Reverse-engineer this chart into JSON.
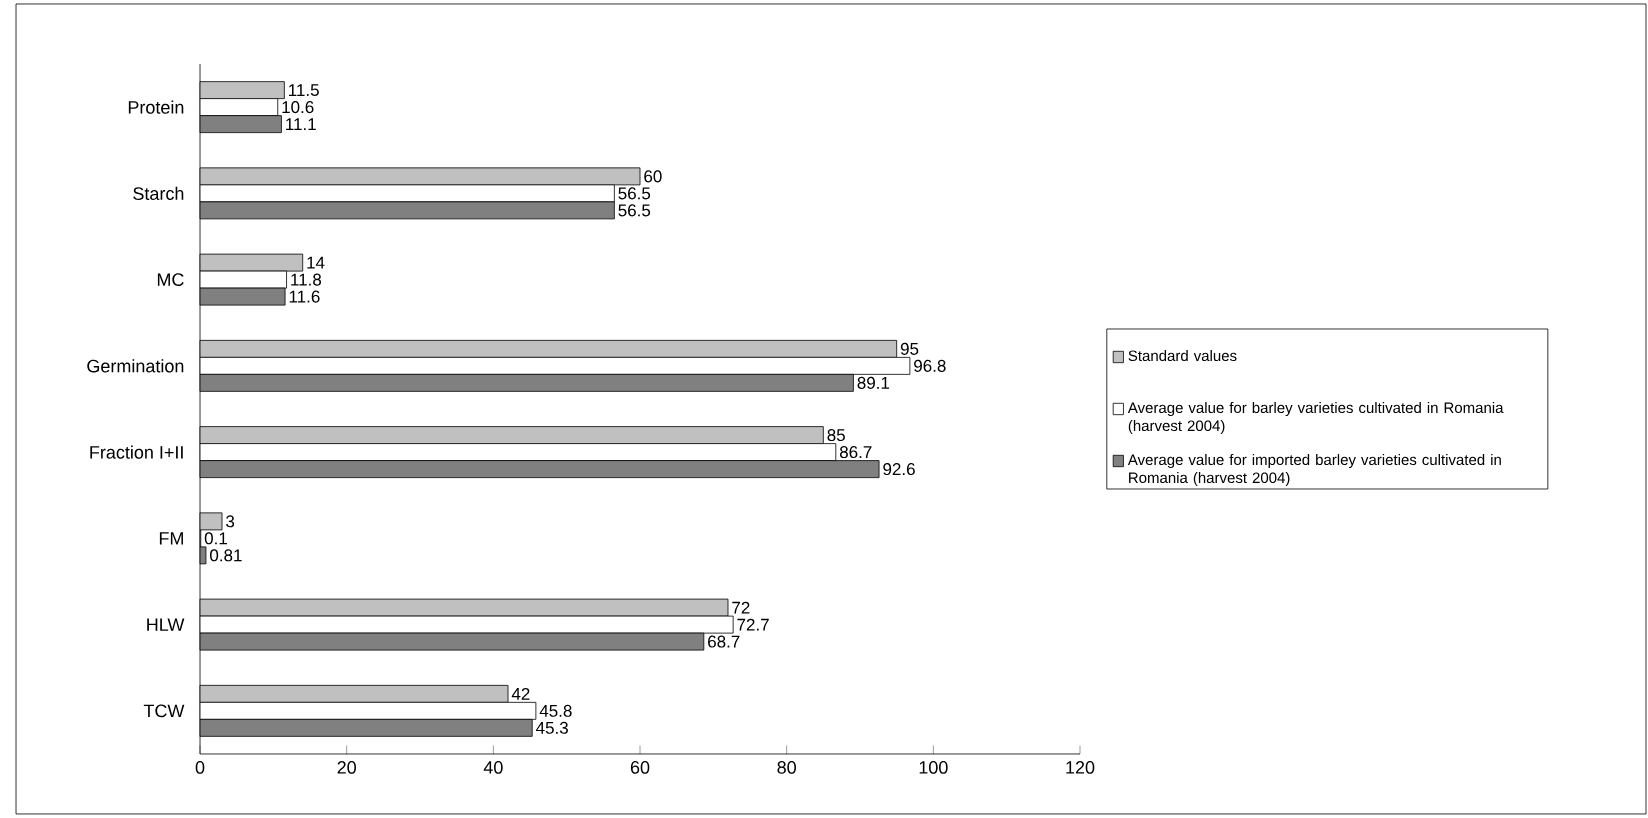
{
  "chart_data": {
    "type": "bar",
    "orientation": "horizontal",
    "categories": [
      "Protein",
      "Starch",
      "MC",
      "Germination",
      "Fraction I+II",
      "FM",
      "HLW",
      "TCW"
    ],
    "series": [
      {
        "name": "Standard values",
        "color": "#c0c0c0",
        "values": [
          11.5,
          60,
          14,
          95,
          85,
          3,
          72,
          42
        ]
      },
      {
        "name": "Average value for barley varieties cultivated in Romania (harvest 2004)",
        "color": "#ffffff",
        "values": [
          10.6,
          56.5,
          11.8,
          96.8,
          86.7,
          0.1,
          72.7,
          45.8
        ]
      },
      {
        "name": "Average value for imported barley varieties cultivated in Romania (harvest 2004)",
        "color": "#808080",
        "values": [
          11.1,
          56.5,
          11.6,
          89.1,
          92.6,
          0.81,
          68.7,
          45.3
        ]
      }
    ],
    "xlim": [
      0,
      120
    ],
    "xticks": [
      0,
      20,
      40,
      60,
      80,
      100,
      120
    ],
    "data_labels": true,
    "legend": "right",
    "grid": false
  }
}
